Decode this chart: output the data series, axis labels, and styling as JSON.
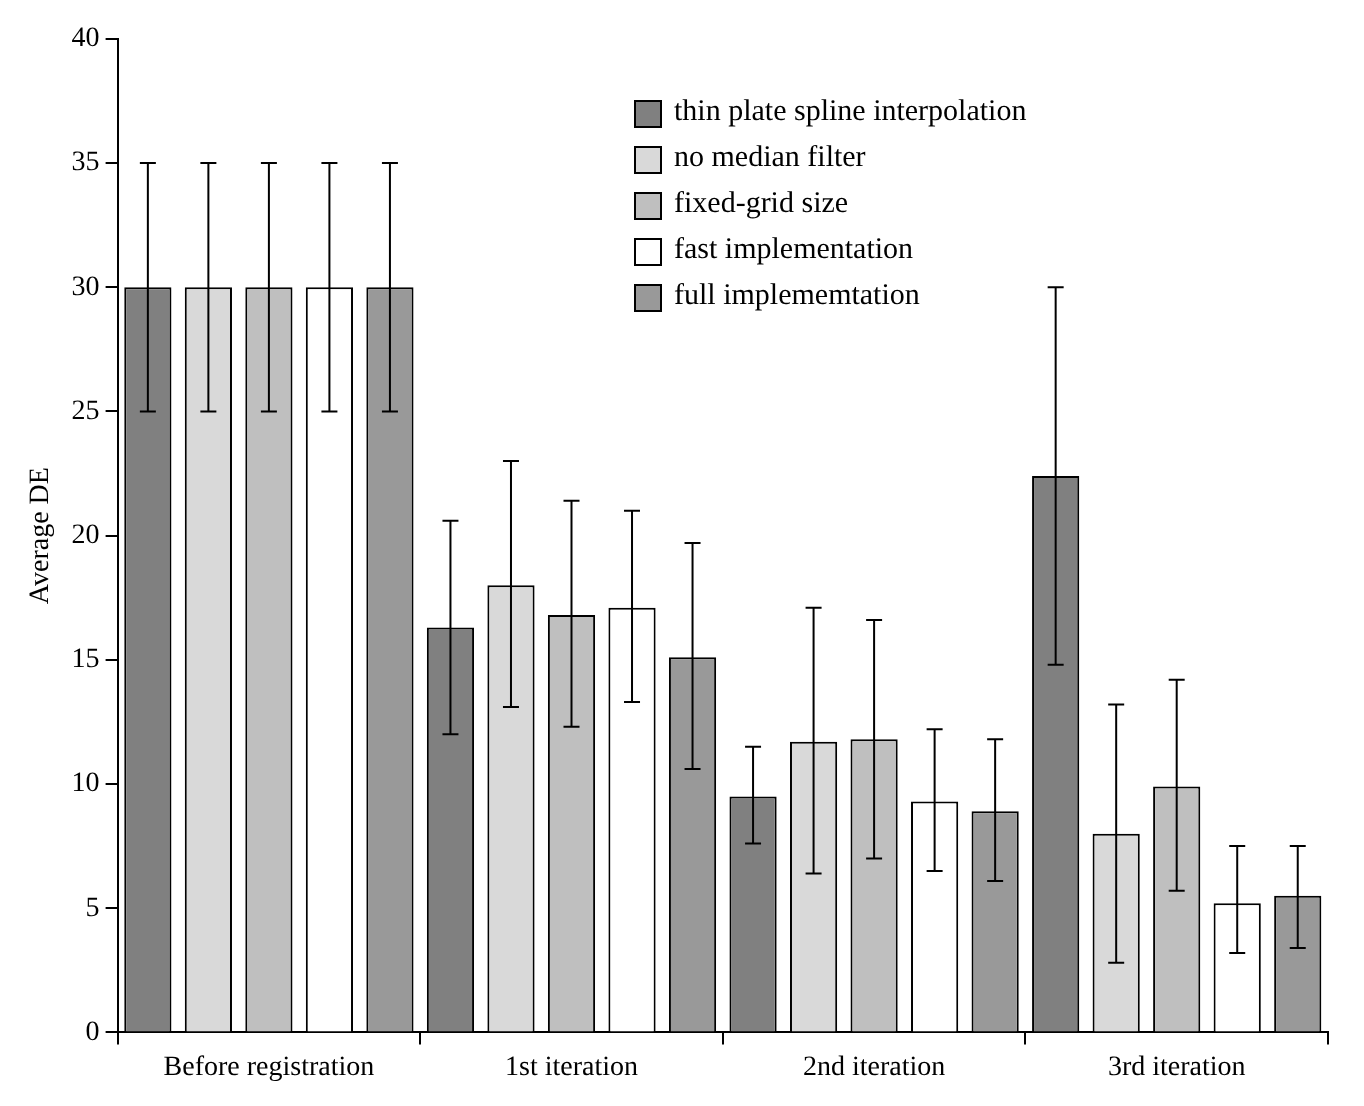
{
  "chart_data": {
    "type": "bar",
    "ylabel": "Average DE",
    "categories": [
      "Before registration",
      "1st iteration",
      "2nd iteration",
      "3rd iteration"
    ],
    "series": [
      {
        "name": "thin plate spline interpolation",
        "color": "#808080",
        "values": [
          30,
          16.3,
          9.5,
          22.4
        ],
        "errors": [
          5,
          [
            12.0,
            20.6
          ],
          [
            7.6,
            11.5
          ],
          [
            14.8,
            30.0
          ]
        ]
      },
      {
        "name": "no median filter",
        "color": "#d9d9d9",
        "values": [
          30,
          18.0,
          11.7,
          8.0
        ],
        "errors": [
          5,
          [
            13.1,
            23.0
          ],
          [
            6.4,
            17.1
          ],
          [
            2.8,
            13.2
          ]
        ]
      },
      {
        "name": "fixed-grid size",
        "color": "#bfbfbf",
        "values": [
          30,
          16.8,
          11.8,
          9.9
        ],
        "errors": [
          5,
          [
            12.3,
            21.4
          ],
          [
            7.0,
            16.6
          ],
          [
            5.7,
            14.2
          ]
        ]
      },
      {
        "name": "fast implementation",
        "color": "#ffffff",
        "values": [
          30,
          17.1,
          9.3,
          5.2
        ],
        "errors": [
          5,
          [
            13.3,
            21.0
          ],
          [
            6.5,
            12.2
          ],
          [
            3.2,
            7.5
          ]
        ]
      },
      {
        "name": "full implememtation",
        "color": "#999999",
        "values": [
          30,
          15.1,
          8.9,
          5.5
        ],
        "errors": [
          5,
          [
            10.6,
            19.7
          ],
          [
            6.1,
            11.8
          ],
          [
            3.4,
            7.5
          ]
        ]
      }
    ],
    "ylim": [
      0,
      40
    ],
    "yticks": [
      0,
      5,
      10,
      15,
      20,
      25,
      30,
      35,
      40
    ],
    "grid": false,
    "legend": "top right"
  }
}
